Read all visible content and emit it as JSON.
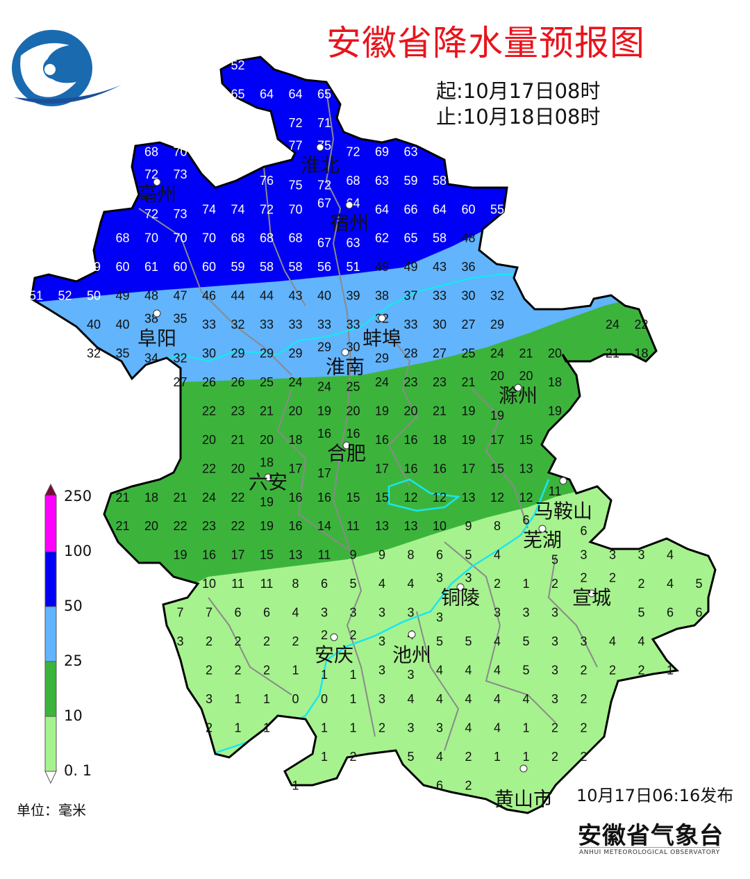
{
  "title": "安徽省降水量预报图",
  "period": {
    "start": "起:10月17日08时",
    "end": "止:10月18日08时"
  },
  "issued": "10月17日06:16发布",
  "organization": {
    "name": "安徽省气象台",
    "name_en": "ANHUI METEOROLOGICAL OBSERVATORY"
  },
  "legend": {
    "unit": "单位：毫米",
    "ticks": [
      "250",
      "100",
      "50",
      "25",
      "10",
      "0. 1"
    ],
    "colors": {
      "over250": "#7a0a3c",
      "100-250": "#ff00ff",
      "50-100": "#0000f6",
      "25-50": "#62b4fc",
      "10-25": "#3cb43c",
      "0.1-10": "#a6f28e"
    }
  },
  "map_colors": {
    "boundary": "#000000",
    "county_lines": "#8a8a8a",
    "rivers": "#19e6f0",
    "city_dot": "#ffffff"
  },
  "cities": [
    "淮北",
    "亳州",
    "宿州",
    "阜阳",
    "蚌埠",
    "淮南",
    "滁州",
    "合肥",
    "六安",
    "马鞍山",
    "芜湖",
    "铜陵",
    "宣城",
    "安庆",
    "池州",
    "黄山市"
  ],
  "grid_values_mm": [
    [
      null,
      null,
      null,
      null,
      null,
      null,
      null,
      52,
      null,
      null,
      null,
      null,
      null,
      null,
      null,
      null,
      null,
      null,
      null,
      null,
      null,
      null,
      null,
      null
    ],
    [
      null,
      null,
      null,
      null,
      null,
      null,
      null,
      65,
      64,
      64,
      65,
      null,
      null,
      null,
      null,
      null,
      null,
      null,
      null,
      null,
      null,
      null,
      null,
      null
    ],
    [
      null,
      null,
      null,
      null,
      null,
      null,
      null,
      null,
      null,
      72,
      71,
      null,
      null,
      null,
      null,
      null,
      null,
      null,
      null,
      null,
      null,
      null,
      null,
      null
    ],
    [
      null,
      null,
      null,
      null,
      68,
      70,
      null,
      null,
      null,
      77,
      75,
      72,
      69,
      63,
      null,
      null,
      null,
      null,
      null,
      null,
      null,
      null,
      null,
      null
    ],
    [
      null,
      null,
      null,
      null,
      72,
      73,
      null,
      null,
      76,
      75,
      72,
      68,
      63,
      59,
      58,
      null,
      null,
      null,
      null,
      null,
      null,
      null,
      null,
      null
    ],
    [
      null,
      null,
      null,
      null,
      72,
      73,
      74,
      74,
      72,
      70,
      67,
      64,
      64,
      66,
      64,
      60,
      55,
      null,
      null,
      null,
      null,
      null,
      null,
      null
    ],
    [
      null,
      null,
      null,
      68,
      70,
      70,
      70,
      68,
      68,
      68,
      67,
      63,
      62,
      65,
      58,
      48,
      null,
      null,
      null,
      null,
      null,
      null,
      null,
      null
    ],
    [
      null,
      null,
      59,
      60,
      61,
      60,
      60,
      59,
      58,
      58,
      56,
      51,
      49,
      49,
      43,
      36,
      null,
      null,
      null,
      null,
      null,
      null,
      null,
      null
    ],
    [
      51,
      52,
      50,
      49,
      48,
      47,
      46,
      44,
      44,
      43,
      40,
      39,
      38,
      37,
      33,
      30,
      32,
      null,
      null,
      null,
      null,
      null,
      null,
      null
    ],
    [
      null,
      null,
      40,
      40,
      38,
      35,
      33,
      32,
      33,
      33,
      33,
      33,
      32,
      33,
      30,
      27,
      29,
      null,
      null,
      null,
      24,
      22,
      null,
      null
    ],
    [
      null,
      null,
      32,
      35,
      34,
      32,
      30,
      29,
      29,
      29,
      29,
      30,
      29,
      28,
      27,
      25,
      24,
      21,
      20,
      null,
      21,
      18,
      null,
      null
    ],
    [
      null,
      null,
      null,
      null,
      null,
      27,
      26,
      26,
      25,
      24,
      24,
      25,
      24,
      23,
      23,
      21,
      20,
      20,
      18,
      null,
      null,
      null,
      null,
      null
    ],
    [
      null,
      null,
      null,
      null,
      null,
      null,
      22,
      23,
      21,
      20,
      19,
      20,
      19,
      20,
      21,
      19,
      19,
      null,
      19,
      null,
      null,
      null,
      null,
      null
    ],
    [
      null,
      null,
      null,
      null,
      null,
      null,
      20,
      21,
      20,
      18,
      16,
      16,
      16,
      16,
      18,
      19,
      17,
      15,
      null,
      null,
      null,
      null,
      null,
      null
    ],
    [
      null,
      null,
      null,
      null,
      null,
      null,
      22,
      20,
      18,
      17,
      17,
      null,
      17,
      16,
      16,
      17,
      15,
      13,
      null,
      null,
      null,
      null,
      null,
      null
    ],
    [
      null,
      null,
      null,
      21,
      18,
      21,
      24,
      22,
      19,
      16,
      16,
      15,
      15,
      12,
      12,
      13,
      12,
      12,
      11,
      null,
      null,
      null,
      null,
      null
    ],
    [
      null,
      null,
      null,
      21,
      20,
      22,
      23,
      22,
      19,
      16,
      14,
      11,
      13,
      13,
      10,
      9,
      8,
      6,
      5,
      6,
      null,
      null,
      null,
      null
    ],
    [
      null,
      null,
      null,
      null,
      null,
      19,
      16,
      17,
      15,
      13,
      11,
      9,
      9,
      8,
      6,
      5,
      4,
      null,
      null,
      3,
      3,
      3,
      4,
      null
    ],
    [
      null,
      null,
      null,
      null,
      null,
      null,
      10,
      11,
      11,
      8,
      6,
      5,
      4,
      4,
      3,
      3,
      2,
      1,
      2,
      2,
      2,
      2,
      4,
      5
    ],
    [
      null,
      null,
      null,
      null,
      null,
      7,
      7,
      6,
      6,
      4,
      3,
      3,
      3,
      3,
      3,
      null,
      3,
      3,
      3,
      null,
      null,
      5,
      6,
      6
    ],
    [
      null,
      null,
      null,
      null,
      null,
      3,
      2,
      2,
      2,
      2,
      2,
      2,
      3,
      4,
      5,
      5,
      4,
      5,
      3,
      3,
      4,
      4,
      null,
      null
    ],
    [
      null,
      null,
      null,
      null,
      null,
      null,
      2,
      2,
      2,
      1,
      1,
      1,
      3,
      3,
      4,
      4,
      4,
      5,
      3,
      2,
      2,
      2,
      1,
      null
    ],
    [
      null,
      null,
      null,
      null,
      null,
      null,
      3,
      1,
      1,
      0,
      0,
      1,
      3,
      4,
      4,
      4,
      4,
      4,
      3,
      2,
      null,
      null,
      null,
      null
    ],
    [
      null,
      null,
      null,
      null,
      null,
      null,
      2,
      1,
      1,
      null,
      1,
      1,
      2,
      3,
      3,
      4,
      4,
      1,
      2,
      2,
      null,
      null,
      null,
      null
    ],
    [
      null,
      null,
      null,
      null,
      null,
      null,
      null,
      null,
      null,
      null,
      1,
      2,
      null,
      5,
      4,
      2,
      1,
      1,
      2,
      2,
      null,
      null,
      null,
      null
    ],
    [
      null,
      null,
      null,
      null,
      null,
      null,
      null,
      null,
      null,
      1,
      null,
      null,
      null,
      null,
      6,
      2,
      null,
      null,
      null,
      null,
      null,
      null,
      null,
      null
    ]
  ]
}
